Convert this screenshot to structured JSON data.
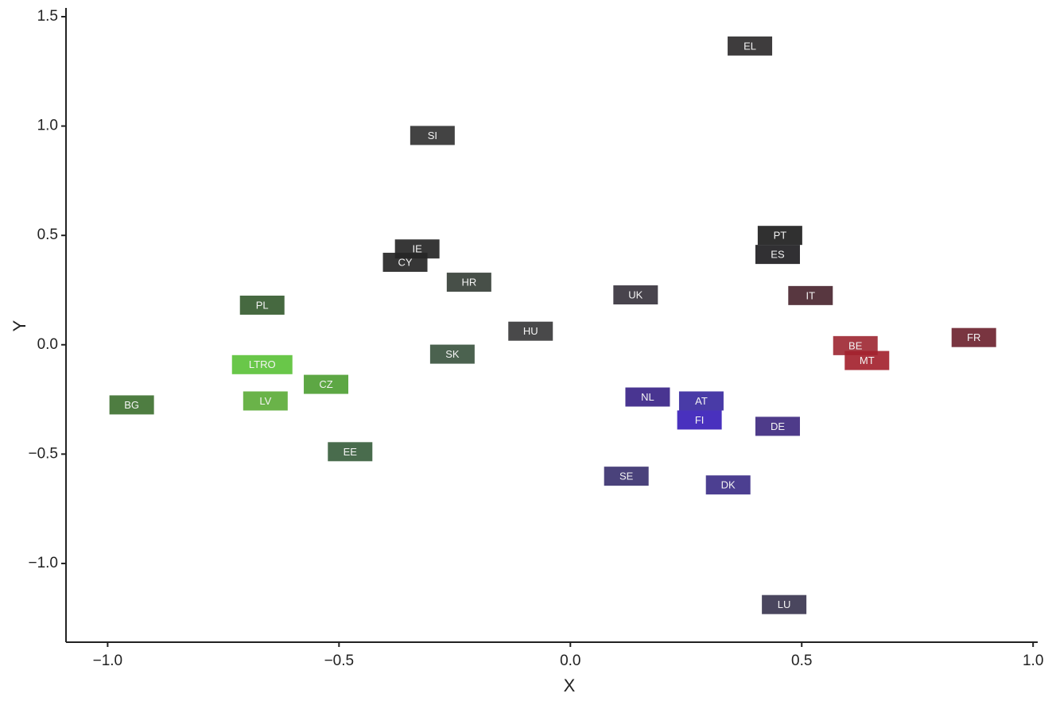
{
  "chart_data": {
    "type": "scatter",
    "x_label": "X",
    "y_label": "Y",
    "labels": [
      "EL",
      "SI",
      "PT",
      "ES",
      "IE",
      "CY",
      "HR",
      "IT",
      "UK",
      "PL",
      "HU",
      "FR",
      "BE",
      "SK",
      "MT",
      "LTRO",
      "CZ",
      "NL",
      "AT",
      "LV",
      "BG",
      "FI",
      "DE",
      "EE",
      "SE",
      "DK",
      "LU"
    ],
    "x": [
      0.388,
      -0.298,
      0.453,
      0.448,
      -0.331,
      -0.357,
      -0.219,
      0.519,
      0.141,
      -0.666,
      -0.086,
      0.872,
      0.616,
      -0.255,
      0.641,
      -0.666,
      -0.528,
      0.167,
      0.283,
      -0.659,
      -0.948,
      0.279,
      0.448,
      -0.476,
      0.121,
      0.341,
      0.462
    ],
    "y": [
      1.366,
      0.957,
      0.5,
      0.413,
      0.438,
      0.377,
      0.286,
      0.225,
      0.228,
      0.181,
      0.062,
      0.033,
      -0.004,
      -0.043,
      -0.072,
      -0.091,
      -0.181,
      -0.239,
      -0.257,
      -0.257,
      -0.275,
      -0.344,
      -0.373,
      -0.489,
      -0.601,
      -0.641,
      -1.188
    ],
    "colors": [
      "#2e2b2c",
      "#333333",
      "#1e1e1e",
      "#1f1e22",
      "#262626",
      "#262626",
      "#374038",
      "#4a2630",
      "#38343e",
      "#365c30",
      "#39393b",
      "#6e2430",
      "#a02a35",
      "#3c5540",
      "#a4232f",
      "#5cc23a",
      "#4f9f34",
      "#3a2488",
      "#3a2aa0",
      "#5dac3a",
      "#3f7231",
      "#3a1fb8",
      "#3f2a80",
      "#39603e",
      "#3b3270",
      "#3d2f88",
      "#3b3650"
    ],
    "xlim": [
      -1.09,
      1.01
    ],
    "ylim": [
      -1.36,
      1.54
    ],
    "xticks": [
      {
        "value": -1.0,
        "label": "−1.0"
      },
      {
        "value": -0.5,
        "label": "−0.5"
      },
      {
        "value": 0.0,
        "label": "0.0"
      },
      0.5,
      {
        "value": 1.0,
        "label": "1.0"
      }
    ],
    "yticks": [
      {
        "value": -1.0,
        "label": "−1.0"
      },
      {
        "value": -0.5,
        "label": "−0.5"
      },
      {
        "value": 0.0,
        "label": "0.0"
      },
      0.5,
      {
        "value": 1.0,
        "label": "1.0"
      },
      1.5
    ],
    "grid": false
  }
}
